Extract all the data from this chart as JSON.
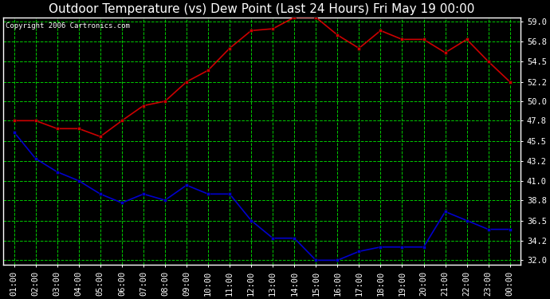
{
  "title": "Outdoor Temperature (vs) Dew Point (Last 24 Hours) Fri May 19 00:00",
  "copyright": "Copyright 2006 Cartronics.com",
  "x_labels": [
    "01:00",
    "02:00",
    "03:00",
    "04:00",
    "05:00",
    "06:00",
    "07:00",
    "08:00",
    "09:00",
    "10:00",
    "11:00",
    "12:00",
    "13:00",
    "14:00",
    "15:00",
    "16:00",
    "17:00",
    "18:00",
    "19:00",
    "20:00",
    "21:00",
    "22:00",
    "23:00",
    "00:00"
  ],
  "temp_data": [
    47.8,
    47.8,
    46.9,
    46.9,
    46.0,
    47.8,
    49.5,
    50.0,
    52.2,
    53.5,
    56.0,
    58.0,
    58.2,
    59.5,
    59.5,
    57.5,
    56.0,
    58.0,
    57.0,
    57.0,
    55.5,
    57.0,
    54.5,
    52.2
  ],
  "dew_data": [
    46.5,
    43.5,
    42.0,
    41.0,
    39.5,
    38.5,
    39.5,
    38.8,
    40.5,
    39.5,
    39.5,
    36.5,
    34.5,
    34.5,
    32.0,
    32.0,
    33.0,
    33.5,
    33.5,
    33.5,
    37.5,
    36.5,
    35.5,
    35.5
  ],
  "temp_color": "#cc0000",
  "dew_color": "#0000cc",
  "bg_color": "#000000",
  "plot_bg_color": "#000000",
  "grid_color": "#00cc00",
  "yticks": [
    32.0,
    34.2,
    36.5,
    38.8,
    41.0,
    43.2,
    45.5,
    47.8,
    50.0,
    52.2,
    54.5,
    56.8,
    59.0
  ],
  "title_fontsize": 11,
  "tick_fontsize": 7.5,
  "copyright_fontsize": 6.5
}
